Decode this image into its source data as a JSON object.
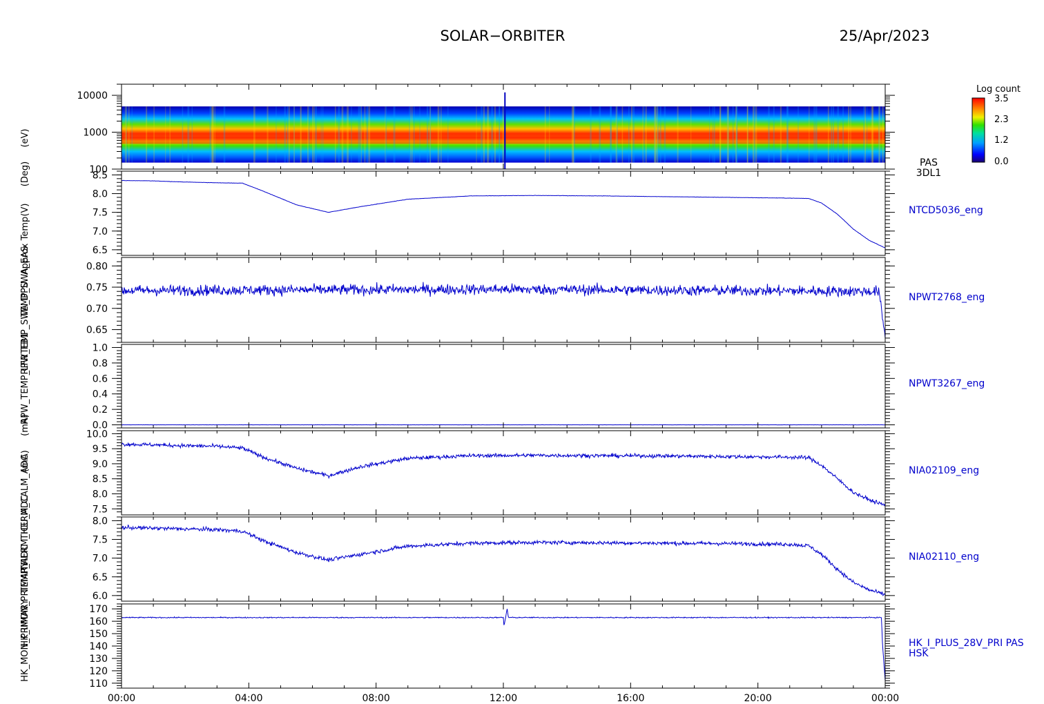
{
  "header": {
    "mission": "SOLAR−ORBITER",
    "date": "25/Apr/2023"
  },
  "colorbar": {
    "title": "Log count",
    "ticks": [
      "3.5",
      "2.3",
      "1.2",
      "0.0"
    ]
  },
  "line_color": "#0000cc",
  "chart_data": [
    {
      "type": "heatmap",
      "name": "spectrogram",
      "ylabel": "(eV)",
      "y_scale": "log",
      "ylim": [
        100,
        20000
      ],
      "y_ticks": [
        100,
        1000,
        10000
      ],
      "y_tick_labels": [
        "100",
        "1000",
        "10000"
      ],
      "label_lines": [
        "PAS",
        "3DL1"
      ],
      "energy_range_eV": [
        150,
        5000
      ],
      "peak_energy_eV": 600,
      "colorbar_range": [
        0.0,
        3.5
      ]
    },
    {
      "type": "line",
      "name": "NTCD5036_eng",
      "label_lines": [
        "NTCD5036_eng"
      ],
      "ylim": [
        6.35,
        8.6
      ],
      "y_ticks": [
        6.5,
        7.0,
        7.5,
        8.0,
        8.5
      ],
      "y_tick_labels": [
        "6.5",
        "7.0",
        "7.5",
        "8.0",
        "8.5"
      ],
      "x_hours": [
        0,
        1,
        2,
        3,
        3.8,
        4.5,
        5.5,
        6.5,
        7.5,
        9,
        11,
        13,
        15,
        17,
        19,
        21,
        21.6,
        22,
        22.5,
        23,
        23.5,
        24
      ],
      "y": [
        8.35,
        8.34,
        8.31,
        8.29,
        8.28,
        8.05,
        7.7,
        7.5,
        7.65,
        7.85,
        7.94,
        7.95,
        7.94,
        7.92,
        7.9,
        7.88,
        7.87,
        7.75,
        7.45,
        7.05,
        6.75,
        6.55
      ],
      "noise": 0.004
    },
    {
      "type": "line",
      "name": "NPWT2768_eng",
      "label_lines": [
        "NPWT2768_eng"
      ],
      "ylim": [
        0.62,
        0.82
      ],
      "y_ticks": [
        0.65,
        0.7,
        0.75,
        0.8
      ],
      "y_tick_labels": [
        "0.65",
        "0.70",
        "0.75",
        "0.80"
      ],
      "x_hours": [
        0,
        12,
        23.8,
        24
      ],
      "y": [
        0.742,
        0.745,
        0.74,
        0.632
      ],
      "noise": 0.012
    },
    {
      "type": "line",
      "name": "NPWT3267_eng",
      "label_lines": [
        "NPWT3267_eng"
      ],
      "ylim": [
        -0.04,
        1.04
      ],
      "y_ticks": [
        0.0,
        0.2,
        0.4,
        0.6,
        0.8,
        1.0
      ],
      "y_tick_labels": [
        "0.0",
        "0.2",
        "0.4",
        "0.6",
        "0.8",
        "1.0"
      ],
      "x_hours": [
        0,
        24
      ],
      "y": [
        0.0,
        0.0
      ],
      "noise": 0.001
    },
    {
      "type": "line",
      "name": "NIA02109_eng",
      "label_lines": [
        "NIA02109_eng"
      ],
      "ylim": [
        7.3,
        10.1
      ],
      "y_ticks": [
        7.5,
        8.0,
        8.5,
        9.0,
        9.5,
        10.0
      ],
      "y_tick_labels": [
        "7.5",
        "8.0",
        "8.5",
        "9.0",
        "9.5",
        "10.0"
      ],
      "x_hours": [
        0,
        1,
        2,
        3,
        3.8,
        4.5,
        5.5,
        6.5,
        7.5,
        9,
        11,
        13,
        15,
        17,
        19,
        21,
        21.6,
        22,
        22.5,
        23,
        23.5,
        24
      ],
      "y": [
        9.65,
        9.63,
        9.6,
        9.58,
        9.52,
        9.2,
        8.85,
        8.6,
        8.9,
        9.18,
        9.27,
        9.28,
        9.27,
        9.26,
        9.24,
        9.22,
        9.2,
        8.95,
        8.5,
        8.05,
        7.8,
        7.62
      ],
      "noise": 0.06
    },
    {
      "type": "line",
      "name": "NIA02110_eng",
      "label_lines": [
        "NIA02110_eng"
      ],
      "ylim": [
        5.85,
        8.1
      ],
      "y_ticks": [
        6.0,
        6.5,
        7.0,
        7.5,
        8.0
      ],
      "y_tick_labels": [
        "6.0",
        "6.5",
        "7.0",
        "7.5",
        "8.0"
      ],
      "x_hours": [
        0,
        1,
        2,
        3,
        3.8,
        4.5,
        5.5,
        6.5,
        7.5,
        9,
        11,
        13,
        15,
        17,
        19,
        21,
        21.6,
        22,
        22.5,
        23,
        23.5,
        24
      ],
      "y": [
        7.82,
        7.8,
        7.78,
        7.76,
        7.72,
        7.45,
        7.15,
        6.95,
        7.1,
        7.32,
        7.4,
        7.42,
        7.41,
        7.4,
        7.39,
        7.37,
        7.33,
        7.1,
        6.7,
        6.35,
        6.15,
        6.02
      ],
      "noise": 0.05
    },
    {
      "type": "line",
      "name": "HK_I_PLUS_28V_PRI",
      "label_lines": [
        "HK_I_PLUS_28V_PRI PAS",
        "HSK"
      ],
      "ylim": [
        106,
        174
      ],
      "y_ticks": [
        110,
        120,
        130,
        140,
        150,
        160,
        170
      ],
      "y_tick_labels": [
        "110",
        "120",
        "130",
        "140",
        "150",
        "160",
        "170"
      ],
      "x_hours": [
        0,
        12,
        12.02,
        12.12,
        12.16,
        12.3,
        23.88,
        23.92,
        24
      ],
      "y": [
        163,
        163,
        156,
        170,
        163,
        163,
        163,
        140,
        112
      ],
      "noise": 0.4
    }
  ],
  "x_axis": {
    "xlim_hours": [
      0,
      24
    ],
    "tick_hours": [
      0,
      4,
      8,
      12,
      16,
      20,
      24
    ],
    "tick_labels": [
      "00:00",
      "04:00",
      "08:00",
      "12:00",
      "16:00",
      "20:00",
      "00:00"
    ]
  },
  "y_axis_titles": [
    "(eV)",
    "(Deg)",
    "(V)",
    "Approx Temp",
    "TEMP_SWA_EAS",
    "TEMP_SWA_DPU",
    "RPW_FB1",
    "RPW_TEMP_LFR",
    "(mA)",
    "(mA)",
    "THERM_CALM_ADC",
    "THERM_ICU_ADC",
    "TEMP_ADC",
    "HK_IMON_PRIMARY",
    "HK_MON_PRIMARY"
  ]
}
